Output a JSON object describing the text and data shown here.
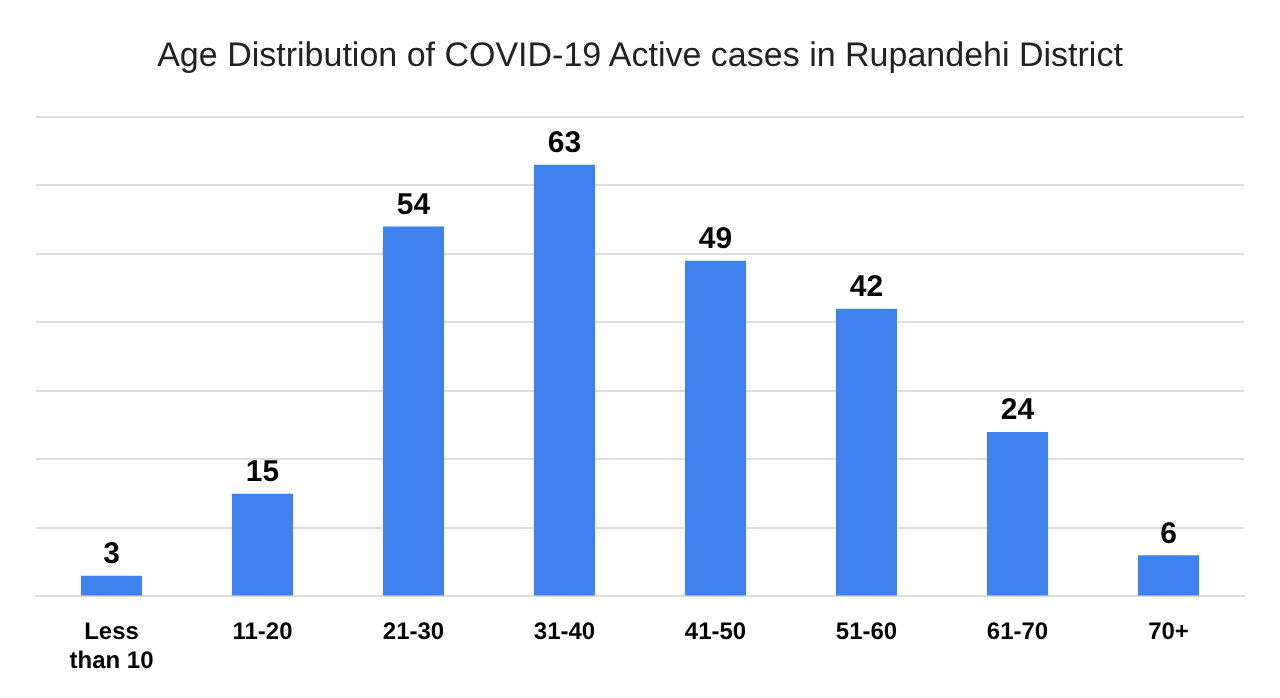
{
  "chart_data": {
    "type": "bar",
    "title": "Age Distribution of COVID-19 Active cases in Rupandehi District",
    "categories": [
      "Less than 10",
      "11-20",
      "21-30",
      "31-40",
      "41-50",
      "51-60",
      "61-70",
      "70+"
    ],
    "values": [
      3,
      15,
      54,
      63,
      49,
      42,
      24,
      6
    ],
    "color": "#3f82ee",
    "data_labels": true,
    "grid": "y",
    "tick_labels": "x"
  }
}
